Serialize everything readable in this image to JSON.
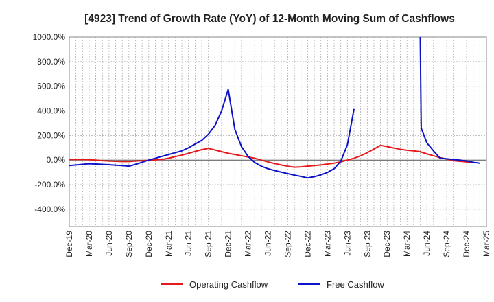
{
  "chart_data": {
    "type": "line",
    "title": "[4923]  Trend of Growth Rate (YoY) of 12-Month Moving Sum of Cashflows",
    "xlabel": "",
    "ylabel": "",
    "ylim": [
      -540,
      1000
    ],
    "yticks": [
      1000,
      800,
      600,
      400,
      200,
      0,
      -200,
      -400
    ],
    "ytick_labels": [
      "1000.0%",
      "800.0%",
      "600.0%",
      "400.0%",
      "200.0%",
      "0.0%",
      "-200.0%",
      "-400.0%"
    ],
    "xtick_labels": [
      "Dec-19",
      "Mar-20",
      "Jun-20",
      "Sep-20",
      "Dec-20",
      "Mar-21",
      "Jun-21",
      "Sep-21",
      "Dec-21",
      "Mar-22",
      "Jun-22",
      "Sep-22",
      "Dec-22",
      "Mar-23",
      "Jun-23",
      "Sep-23",
      "Dec-23",
      "Mar-24",
      "Jun-24",
      "Sep-24",
      "Dec-24",
      "Mar-25"
    ],
    "grid": true,
    "legend_position": "bottom",
    "series": [
      {
        "name": "Operating Cashflow",
        "color": "#e41a1c",
        "points": [
          [
            0,
            5
          ],
          [
            1,
            5
          ],
          [
            2,
            5
          ],
          [
            3,
            3
          ],
          [
            4,
            0
          ],
          [
            5,
            -5
          ],
          [
            6,
            -8
          ],
          [
            7,
            -10
          ],
          [
            8,
            -12
          ],
          [
            9,
            -12
          ],
          [
            10,
            -8
          ],
          [
            11,
            -5
          ],
          [
            12,
            -2
          ],
          [
            13,
            2
          ],
          [
            14,
            5
          ],
          [
            15,
            15
          ],
          [
            16,
            28
          ],
          [
            17,
            40
          ],
          [
            18,
            55
          ],
          [
            19,
            70
          ],
          [
            20,
            85
          ],
          [
            21,
            95
          ],
          [
            22,
            82
          ],
          [
            23,
            68
          ],
          [
            24,
            55
          ],
          [
            25,
            45
          ],
          [
            26,
            35
          ],
          [
            27,
            25
          ],
          [
            28,
            15
          ],
          [
            29,
            0
          ],
          [
            30,
            -15
          ],
          [
            31,
            -28
          ],
          [
            32,
            -40
          ],
          [
            33,
            -50
          ],
          [
            34,
            -58
          ],
          [
            35,
            -55
          ],
          [
            36,
            -50
          ],
          [
            37,
            -45
          ],
          [
            38,
            -40
          ],
          [
            39,
            -32
          ],
          [
            40,
            -25
          ],
          [
            41,
            -15
          ],
          [
            42,
            0
          ],
          [
            43,
            15
          ],
          [
            44,
            35
          ],
          [
            45,
            60
          ],
          [
            46,
            90
          ],
          [
            47,
            120
          ],
          [
            48,
            110
          ],
          [
            49,
            98
          ],
          [
            50,
            88
          ],
          [
            51,
            80
          ],
          [
            52,
            75
          ],
          [
            53,
            68
          ],
          [
            54,
            50
          ],
          [
            55,
            35
          ],
          [
            56,
            20
          ],
          [
            57,
            8
          ],
          [
            58,
            -5
          ],
          [
            59,
            -10
          ],
          [
            60,
            -15
          ],
          [
            61,
            -18
          ]
        ]
      },
      {
        "name": "Free Cashflow",
        "color": "#0c12c8",
        "points": [
          [
            0,
            -45
          ],
          [
            1,
            -40
          ],
          [
            2,
            -35
          ],
          [
            3,
            -30
          ],
          [
            4,
            -32
          ],
          [
            5,
            -35
          ],
          [
            6,
            -38
          ],
          [
            7,
            -42
          ],
          [
            8,
            -45
          ],
          [
            9,
            -50
          ],
          [
            10,
            -35
          ],
          [
            11,
            -18
          ],
          [
            12,
            0
          ],
          [
            13,
            15
          ],
          [
            14,
            30
          ],
          [
            15,
            45
          ],
          [
            16,
            60
          ],
          [
            17,
            75
          ],
          [
            18,
            100
          ],
          [
            19,
            130
          ],
          [
            20,
            160
          ],
          [
            21,
            210
          ],
          [
            22,
            280
          ],
          [
            23,
            400
          ],
          [
            24,
            575
          ],
          [
            25,
            250
          ],
          [
            26,
            110
          ],
          [
            27,
            30
          ],
          [
            28,
            -20
          ],
          [
            29,
            -50
          ],
          [
            30,
            -70
          ],
          [
            31,
            -85
          ],
          [
            32,
            -98
          ],
          [
            33,
            -110
          ],
          [
            34,
            -122
          ],
          [
            35,
            -133
          ],
          [
            36,
            -145
          ],
          [
            37,
            -135
          ],
          [
            38,
            -120
          ],
          [
            39,
            -100
          ],
          [
            40,
            -70
          ],
          [
            41,
            -10
          ],
          [
            42,
            125
          ],
          [
            43,
            415
          ],
          [
            null,
            null
          ],
          [
            53,
            1000
          ],
          [
            53.15,
            260
          ],
          [
            54,
            140
          ],
          [
            55,
            75
          ],
          [
            56,
            15
          ],
          [
            57,
            10
          ],
          [
            58,
            5
          ],
          [
            59,
            0
          ],
          [
            60,
            -8
          ],
          [
            61,
            -18
          ],
          [
            62,
            -25
          ]
        ]
      }
    ]
  }
}
